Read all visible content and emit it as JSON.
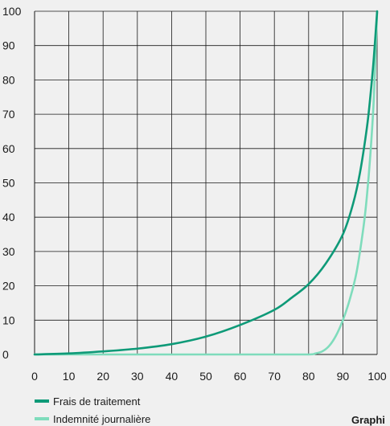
{
  "chart_data": {
    "type": "line",
    "title": "",
    "xlabel": "",
    "ylabel": "",
    "xlim": [
      0,
      100
    ],
    "ylim": [
      0,
      100
    ],
    "x_ticks": [
      "0",
      "10",
      "20",
      "30",
      "40",
      "50",
      "60",
      "70",
      "80",
      "90",
      "100"
    ],
    "y_ticks": [
      "0",
      "10",
      "20",
      "30",
      "40",
      "50",
      "60",
      "70",
      "80",
      "90",
      "100"
    ],
    "grid": true,
    "legend_position": "bottom-left",
    "series": [
      {
        "name": "Frais de traitement",
        "color": "#0e9a78",
        "x": [
          0,
          10,
          20,
          30,
          40,
          50,
          60,
          70,
          75,
          80,
          85,
          90,
          93,
          95,
          97,
          98,
          99,
          100
        ],
        "y": [
          0,
          0.3,
          0.9,
          1.7,
          3,
          5.2,
          8.6,
          13,
          16.5,
          20.5,
          26.5,
          35,
          44,
          53,
          66,
          75,
          86,
          100
        ]
      },
      {
        "name": "Indemnité journalière",
        "color": "#7fdcbc",
        "x": [
          0,
          10,
          20,
          30,
          40,
          50,
          60,
          70,
          80,
          82,
          84,
          86,
          88,
          90,
          92,
          94,
          96,
          97,
          98,
          99,
          100
        ],
        "y": [
          0,
          0,
          0,
          0,
          0,
          0,
          0,
          0,
          0,
          0.3,
          0.9,
          2.5,
          5.5,
          10,
          16,
          24,
          37,
          46,
          58,
          74,
          100
        ]
      }
    ]
  },
  "footer": {
    "corner_text": "Graphi"
  }
}
